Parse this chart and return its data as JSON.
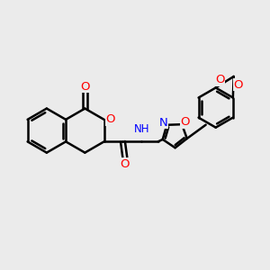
{
  "background_color": "#ebebeb",
  "bond_color": "#000000",
  "bond_width": 1.8,
  "figsize": [
    3.0,
    3.0
  ],
  "dpi": 100,
  "xlim": [
    0,
    12
  ],
  "ylim": [
    0,
    12
  ]
}
